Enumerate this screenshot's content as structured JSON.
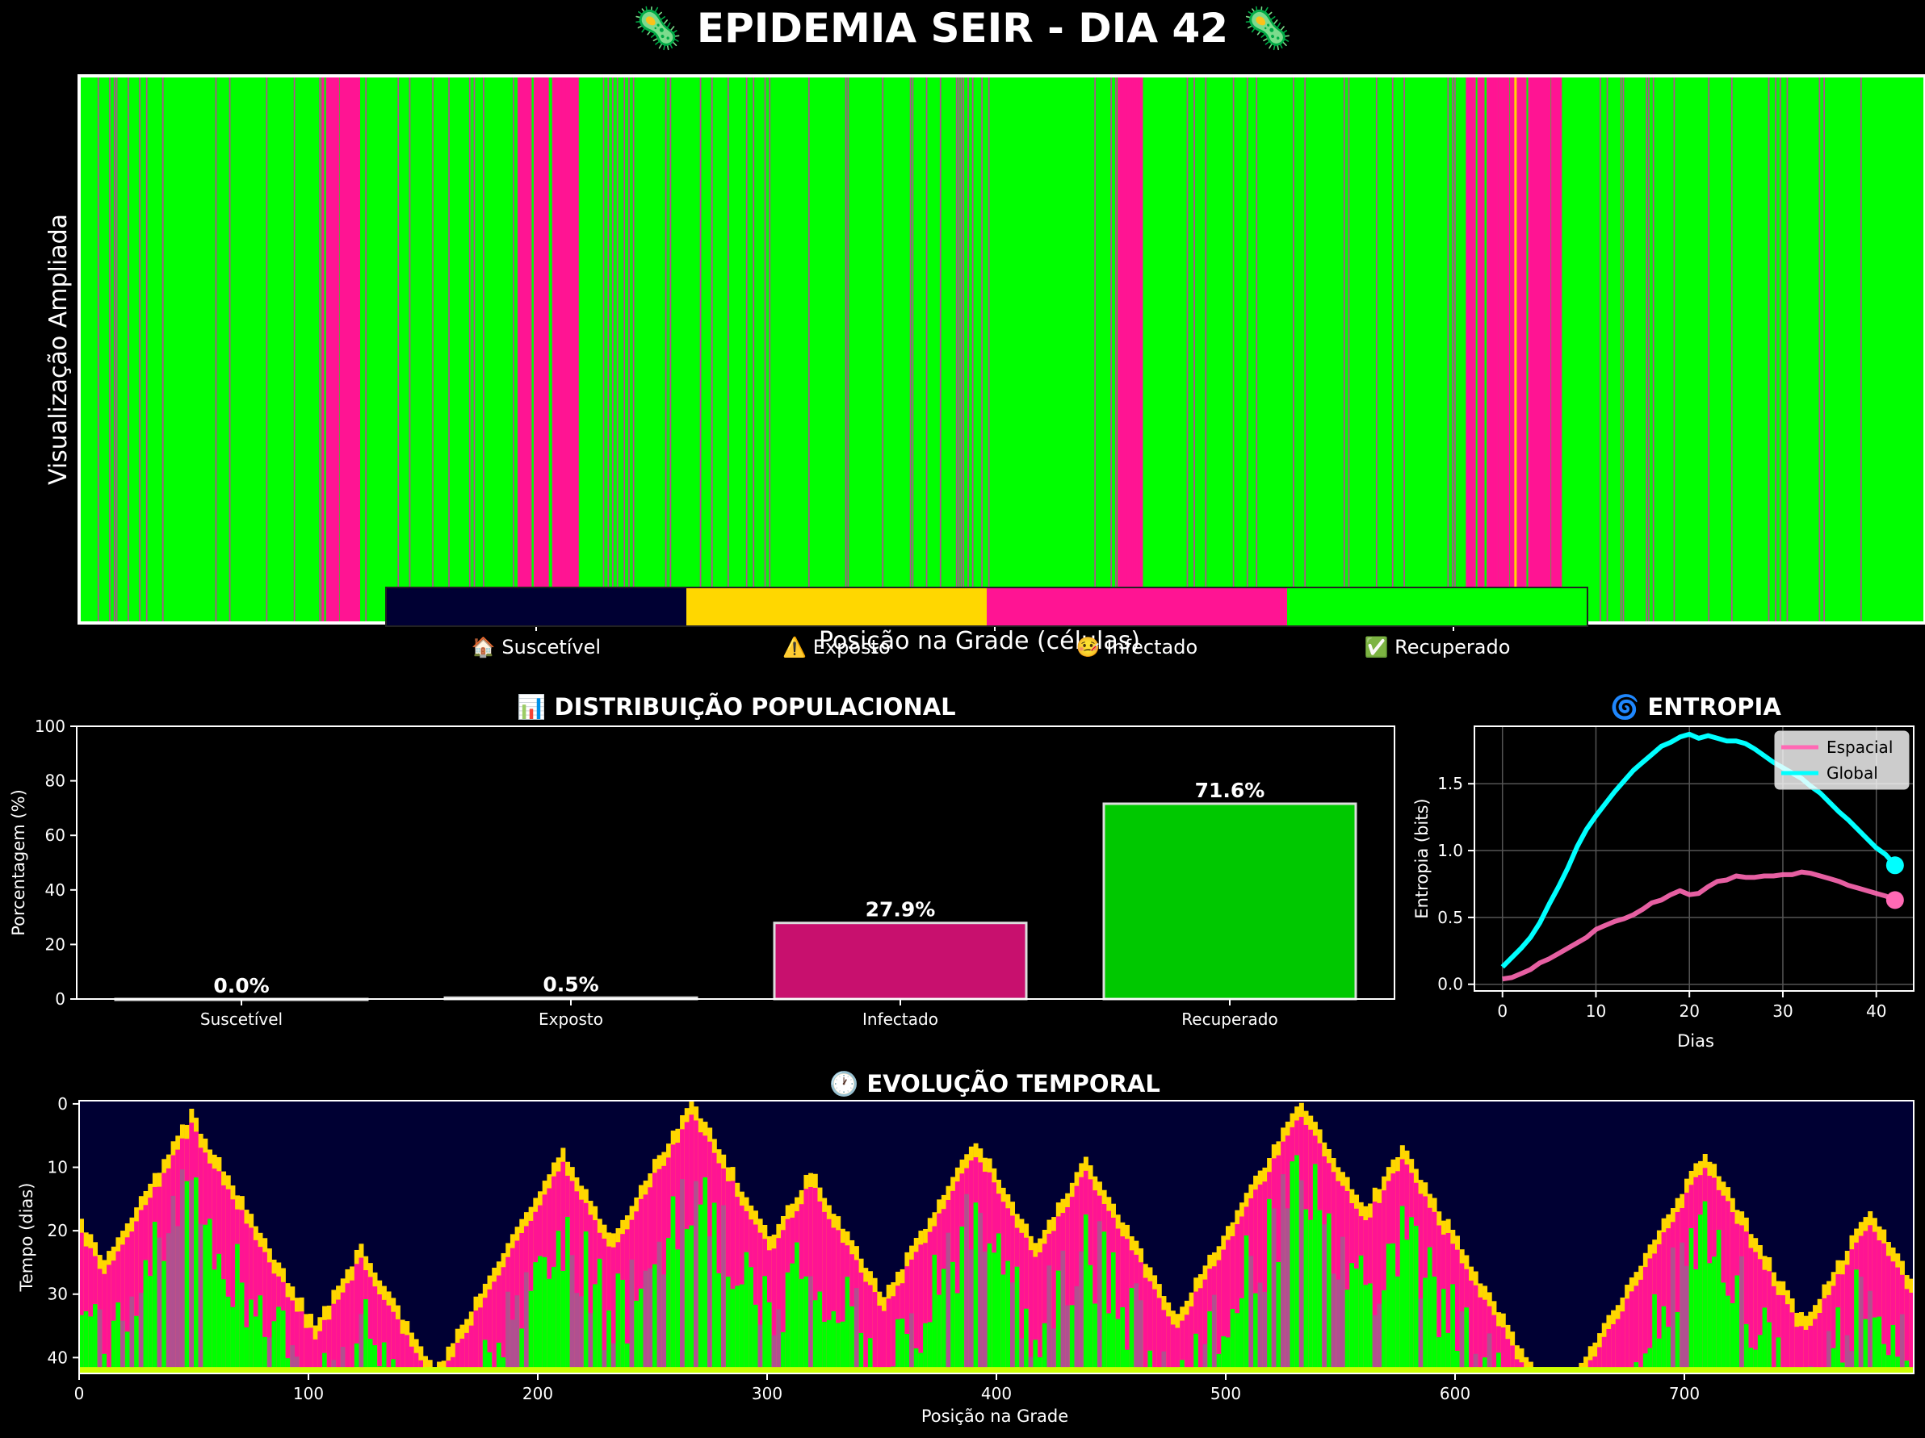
{
  "page": {
    "title": "🦠 EPIDEMIA SEIR - DIA 42 🦠"
  },
  "colors": {
    "suscetivel": "#000033",
    "exposto": "#FFD700",
    "infectado": "#FF1493",
    "recuperado": "#00FF00",
    "infectado_bar": "#C8106E",
    "recuperado_bar": "#00C800",
    "espacial": "#FF69B4",
    "global": "#00FFFF"
  },
  "chart_data": [
    {
      "type": "heatmap",
      "ylabel": "Visualização Ampliada",
      "xlabel": "Posição na Grade (células)",
      "legend": {
        "placement": "bottom-center",
        "entries": [
          {
            "name": "🏠 Suscetível",
            "color": "#000033"
          },
          {
            "name": "⚠️ Exposto",
            "color": "#FFD700"
          },
          {
            "name": "🤒 Infectado",
            "color": "#FF1493"
          },
          {
            "name": "✅ Recuperado",
            "color": "#00FF00"
          }
        ]
      },
      "cells": 800,
      "note_states": [
        "S",
        "E",
        "I",
        "R"
      ]
    },
    {
      "type": "bar",
      "title": "📊 DISTRIBUIÇÃO POPULACIONAL",
      "ylabel": "Porcentagem (%)",
      "ylim": [
        0,
        100
      ],
      "yticks": [
        0,
        20,
        40,
        60,
        80,
        100
      ],
      "categories": [
        "Suscetível",
        "Exposto",
        "Infectado",
        "Recuperado"
      ],
      "values": [
        0.0,
        0.5,
        27.9,
        71.6
      ],
      "labels": [
        "0.0%",
        "0.5%",
        "27.9%",
        "71.6%"
      ]
    },
    {
      "type": "line",
      "title": "🌀 ENTROPIA",
      "xlabel": "Dias",
      "ylabel": "Entropia (bits)",
      "xlim": [
        -3,
        44
      ],
      "ylim": [
        -0.05,
        1.93
      ],
      "xticks": [
        0,
        10,
        20,
        30,
        40
      ],
      "yticks": [
        0.0,
        0.5,
        1.0,
        1.5
      ],
      "ytick_labels": [
        "0.0",
        "0.5",
        "1.0",
        "1.5"
      ],
      "grid": true,
      "legend_placement": "top-right",
      "series": [
        {
          "name": "Espacial",
          "x": [
            0,
            1,
            2,
            3,
            4,
            5,
            6,
            7,
            8,
            9,
            10,
            11,
            12,
            13,
            14,
            15,
            16,
            17,
            18,
            19,
            20,
            21,
            22,
            23,
            24,
            25,
            26,
            27,
            28,
            29,
            30,
            31,
            32,
            33,
            34,
            35,
            36,
            37,
            38,
            39,
            40,
            41,
            42
          ],
          "values": [
            0.04,
            0.05,
            0.08,
            0.11,
            0.16,
            0.19,
            0.23,
            0.27,
            0.31,
            0.35,
            0.41,
            0.44,
            0.47,
            0.49,
            0.52,
            0.56,
            0.61,
            0.63,
            0.67,
            0.7,
            0.67,
            0.68,
            0.73,
            0.77,
            0.78,
            0.81,
            0.8,
            0.8,
            0.81,
            0.81,
            0.82,
            0.82,
            0.84,
            0.83,
            0.81,
            0.79,
            0.77,
            0.74,
            0.72,
            0.7,
            0.68,
            0.66,
            0.63
          ]
        },
        {
          "name": "Global",
          "x": [
            0,
            1,
            2,
            3,
            4,
            5,
            6,
            7,
            8,
            9,
            10,
            11,
            12,
            13,
            14,
            15,
            16,
            17,
            18,
            19,
            20,
            21,
            22,
            23,
            24,
            25,
            26,
            27,
            28,
            29,
            30,
            31,
            32,
            33,
            34,
            35,
            36,
            37,
            38,
            39,
            40,
            41,
            42
          ],
          "values": [
            0.13,
            0.2,
            0.27,
            0.35,
            0.46,
            0.6,
            0.73,
            0.87,
            1.03,
            1.16,
            1.26,
            1.35,
            1.44,
            1.52,
            1.6,
            1.66,
            1.72,
            1.78,
            1.81,
            1.85,
            1.87,
            1.84,
            1.86,
            1.84,
            1.82,
            1.82,
            1.8,
            1.76,
            1.71,
            1.66,
            1.62,
            1.58,
            1.54,
            1.48,
            1.43,
            1.36,
            1.29,
            1.23,
            1.16,
            1.09,
            1.02,
            0.97,
            0.89
          ]
        }
      ]
    },
    {
      "type": "heatmap",
      "title": "🕐 EVOLUÇÃO TEMPORAL",
      "xlabel": "Posição na Grade",
      "ylabel": "Tempo (dias)",
      "xlim": [
        0,
        800
      ],
      "ylim": [
        42,
        0
      ],
      "xticks": [
        0,
        100,
        200,
        300,
        400,
        500,
        600,
        700
      ],
      "yticks": [
        0,
        10,
        20,
        30,
        40
      ],
      "outbreak_centers_day": [
        [
          0,
          19
        ],
        [
          48,
          2
        ],
        [
          122,
          23
        ],
        [
          210,
          8
        ],
        [
          266,
          0
        ],
        [
          318,
          11
        ],
        [
          390,
          6
        ],
        [
          438,
          9
        ],
        [
          532,
          0
        ],
        [
          576,
          7
        ],
        [
          708,
          8
        ],
        [
          780,
          17
        ]
      ]
    }
  ]
}
